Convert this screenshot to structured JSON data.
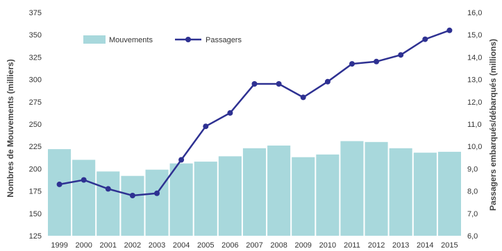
{
  "chart_data": {
    "type": "bar+line",
    "categories": [
      "1999",
      "2000",
      "2001",
      "2002",
      "2003",
      "2004",
      "2005",
      "2006",
      "2007",
      "2008",
      "2009",
      "2010",
      "2011",
      "2012",
      "2013",
      "2014",
      "2015"
    ],
    "series": [
      {
        "name": "Mouvements",
        "type": "bar",
        "axis": "left",
        "color": "#a8d8dc",
        "values": [
          222,
          210,
          197,
          192,
          199,
          206,
          208,
          214,
          223,
          226,
          213,
          216,
          231,
          230,
          223,
          218,
          219
        ]
      },
      {
        "name": "Passagers",
        "type": "line",
        "axis": "right",
        "color": "#2e3192",
        "values": [
          8.3,
          8.5,
          8.1,
          7.8,
          7.9,
          9.4,
          10.9,
          11.5,
          12.8,
          12.8,
          12.2,
          12.9,
          13.7,
          13.8,
          14.1,
          14.8,
          15.2
        ]
      }
    ],
    "ylabel_left": "Nombres de Mouvements (milliers)",
    "ylabel_right": "Passagers embarqués/débarqués (millions)",
    "ylim_left": [
      125,
      375
    ],
    "yticks_left": [
      "125",
      "150",
      "175",
      "200",
      "225",
      "250",
      "275",
      "300",
      "325",
      "350",
      "375"
    ],
    "ylim_right": [
      6,
      16
    ],
    "yticks_right": [
      "6,0",
      "7,0",
      "8,0",
      "9,0",
      "10,0",
      "11,0",
      "12,0",
      "13,0",
      "14,0",
      "15,0",
      "16,0"
    ],
    "grid": false,
    "legend": "top-left"
  }
}
